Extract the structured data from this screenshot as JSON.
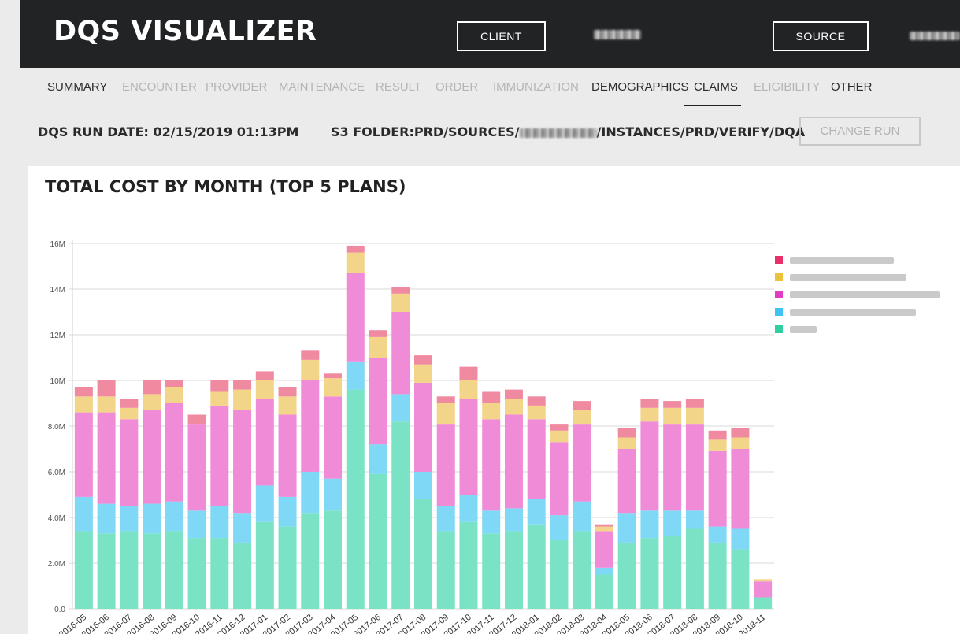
{
  "header": {
    "app_title": "DQS VISUALIZER",
    "client_button": "CLIENT",
    "source_button": "SOURCE"
  },
  "tabs": [
    {
      "label": "SUMMARY",
      "enabled": true
    },
    {
      "label": "ENCOUNTER",
      "enabled": false
    },
    {
      "label": "PROVIDER",
      "enabled": false
    },
    {
      "label": "MAINTENANCE",
      "enabled": false
    },
    {
      "label": "RESULT",
      "enabled": false
    },
    {
      "label": "ORDER",
      "enabled": false
    },
    {
      "label": "IMMUNIZATION",
      "enabled": false
    },
    {
      "label": "DEMOGRAPHICS",
      "enabled": true
    },
    {
      "label": "CLAIMS",
      "enabled": true,
      "active": true
    },
    {
      "label": "ELIGIBILITY",
      "enabled": false
    },
    {
      "label": "OTHER",
      "enabled": true
    }
  ],
  "run": {
    "run_date": "DQS RUN DATE: 02/15/2019 01:13PM",
    "folder_prefix": "S3 FOLDER:PRD/SOURCES/",
    "folder_suffix": "/INSTANCES/PRD/VERIFY/DQA",
    "change_run_button": "CHANGE RUN"
  },
  "colors": {
    "header_bg": "#222325",
    "series_1": "#f08aa1",
    "series_2": "#f3d58a",
    "series_3": "#f08bd8",
    "series_4": "#7fd8f5",
    "series_5": "#7ae3c6",
    "legend_1": "#e8316a",
    "legend_2": "#eac33a",
    "legend_3": "#e23cc4",
    "legend_4": "#3fc4ef",
    "legend_5": "#2fcfa0"
  },
  "chart_data": {
    "type": "bar",
    "stacked": true,
    "title": "TOTAL COST BY MONTH (TOP 5 PLANS)",
    "ylim": [
      0,
      16000000
    ],
    "yticks": [
      "0.0",
      "2.0M",
      "4.0M",
      "6.0M",
      "8.0M",
      "10M",
      "12M",
      "14M",
      "16M"
    ],
    "grid": true,
    "legend_position": "right",
    "categories": [
      "2016-05",
      "2016-06",
      "2016-07",
      "2016-08",
      "2016-09",
      "2016-10",
      "2016-11",
      "2016-12",
      "2017-01",
      "2017-02",
      "2017-03",
      "2017-04",
      "2017-05",
      "2017-06",
      "2017-07",
      "2017-08",
      "2017-09",
      "2017-10",
      "2017-11",
      "2017-12",
      "2018-01",
      "2018-02",
      "2018-03",
      "2018-04",
      "2018-05",
      "2018-06",
      "2018-07",
      "2018-08",
      "2018-09",
      "2018-10",
      "2018-11"
    ],
    "series": [
      {
        "values": [
          3.4,
          3.3,
          3.4,
          3.3,
          3.4,
          3.1,
          3.1,
          2.9,
          3.8,
          3.6,
          4.2,
          4.3,
          9.6,
          5.9,
          8.2,
          4.8,
          3.4,
          3.8,
          3.3,
          3.4,
          3.7,
          3.0,
          3.4,
          1.5,
          2.9,
          3.1,
          3.2,
          3.5,
          2.9,
          2.6,
          0.5
        ]
      },
      {
        "values": [
          1.5,
          1.3,
          1.1,
          1.3,
          1.3,
          1.2,
          1.4,
          1.3,
          1.6,
          1.3,
          1.8,
          1.4,
          1.2,
          1.3,
          1.2,
          1.2,
          1.1,
          1.2,
          1.0,
          1.0,
          1.1,
          1.1,
          1.3,
          0.3,
          1.3,
          1.2,
          1.1,
          0.8,
          0.7,
          0.9,
          0.0
        ]
      },
      {
        "values": [
          3.7,
          4.0,
          3.8,
          4.1,
          4.3,
          3.8,
          4.4,
          4.5,
          3.8,
          3.6,
          4.0,
          3.6,
          3.9,
          3.8,
          3.6,
          3.9,
          3.6,
          4.2,
          4.0,
          4.1,
          3.5,
          3.2,
          3.4,
          1.6,
          2.8,
          3.9,
          3.8,
          3.8,
          3.3,
          3.5,
          0.7
        ]
      },
      {
        "values": [
          0.7,
          0.7,
          0.5,
          0.7,
          0.7,
          0.0,
          0.6,
          0.9,
          0.8,
          0.8,
          0.9,
          0.8,
          0.9,
          0.9,
          0.8,
          0.8,
          0.9,
          0.8,
          0.7,
          0.7,
          0.6,
          0.5,
          0.6,
          0.2,
          0.5,
          0.6,
          0.7,
          0.7,
          0.5,
          0.5,
          0.1
        ]
      },
      {
        "values": [
          0.4,
          0.7,
          0.4,
          0.6,
          0.3,
          0.4,
          0.5,
          0.4,
          0.4,
          0.4,
          0.4,
          0.2,
          0.3,
          0.3,
          0.3,
          0.4,
          0.3,
          0.6,
          0.5,
          0.4,
          0.4,
          0.3,
          0.4,
          0.1,
          0.4,
          0.4,
          0.3,
          0.4,
          0.4,
          0.4,
          0.0
        ]
      }
    ]
  }
}
